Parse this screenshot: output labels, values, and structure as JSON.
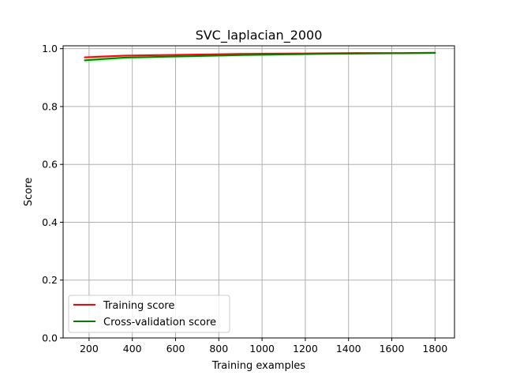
{
  "chart_data": {
    "type": "line",
    "title": "SVC_laplacian_2000",
    "xlabel": "Training examples",
    "ylabel": "Score",
    "xlim": [
      80,
      1890
    ],
    "ylim": [
      0.0,
      1.01
    ],
    "xticks": [
      200,
      400,
      600,
      800,
      1000,
      1200,
      1400,
      1600,
      1800
    ],
    "yticks": [
      0.0,
      0.2,
      0.4,
      0.6,
      0.8,
      1.0
    ],
    "xtick_labels": [
      "200",
      "400",
      "600",
      "800",
      "1000",
      "1200",
      "1400",
      "1600",
      "1800"
    ],
    "ytick_labels": [
      "0.0",
      "0.2",
      "0.4",
      "0.6",
      "0.8",
      "1.0"
    ],
    "grid": true,
    "legend_position": "lower-left",
    "x": [
      180,
      360,
      540,
      720,
      900,
      1080,
      1260,
      1440,
      1620,
      1800
    ],
    "series": [
      {
        "name": "Training score",
        "color": "#ff0000",
        "values": [
          0.97,
          0.976,
          0.978,
          0.98,
          0.982,
          0.983,
          0.984,
          0.985,
          0.985,
          0.986
        ],
        "band_lower": [
          0.966,
          0.973,
          0.976,
          0.978,
          0.98,
          0.982,
          0.983,
          0.984,
          0.984,
          0.985
        ],
        "band_upper": [
          0.974,
          0.979,
          0.98,
          0.982,
          0.984,
          0.984,
          0.985,
          0.986,
          0.986,
          0.987
        ],
        "band_color": "#ff9999"
      },
      {
        "name": "Cross-validation score",
        "color": "#008000",
        "values": [
          0.96,
          0.969,
          0.972,
          0.975,
          0.978,
          0.98,
          0.982,
          0.983,
          0.984,
          0.985
        ],
        "band_lower": [
          0.951,
          0.962,
          0.966,
          0.969,
          0.972,
          0.975,
          0.978,
          0.98,
          0.981,
          0.982
        ],
        "band_upper": [
          0.969,
          0.976,
          0.978,
          0.981,
          0.984,
          0.985,
          0.986,
          0.986,
          0.987,
          0.988
        ],
        "band_color": "#90ee90"
      }
    ]
  }
}
